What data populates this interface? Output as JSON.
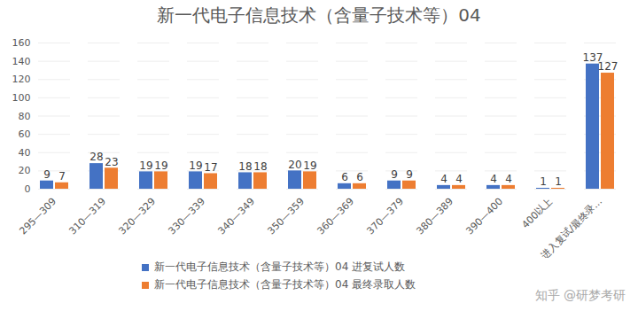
{
  "chart_data": {
    "type": "bar",
    "title": "新一代电子信息技术（含量子技术等）04",
    "categories": [
      "295—309",
      "310—319",
      "320—329",
      "330—339",
      "340—349",
      "350—359",
      "360—369",
      "370—379",
      "380—389",
      "390—400",
      "400以上",
      "进入复试/最终录…"
    ],
    "series": [
      {
        "name": "新一代电子信息技术（含量子技术等）04 进复试人数",
        "color": "#4472c4",
        "values": [
          9,
          28,
          19,
          19,
          18,
          20,
          6,
          9,
          4,
          4,
          1,
          137
        ]
      },
      {
        "name": "新一代电子信息技术（含量子技术等）04 最终录取人数",
        "color": "#ed7d31",
        "values": [
          7,
          23,
          19,
          17,
          18,
          19,
          6,
          9,
          4,
          4,
          1,
          127
        ]
      }
    ],
    "ylim": [
      0,
      160
    ],
    "yticks": [
      0,
      20,
      40,
      60,
      80,
      100,
      120,
      140,
      160
    ],
    "grid": true,
    "data_labels": true,
    "legend": "bottom",
    "annotations": [
      "知乎 @研梦考研"
    ]
  }
}
